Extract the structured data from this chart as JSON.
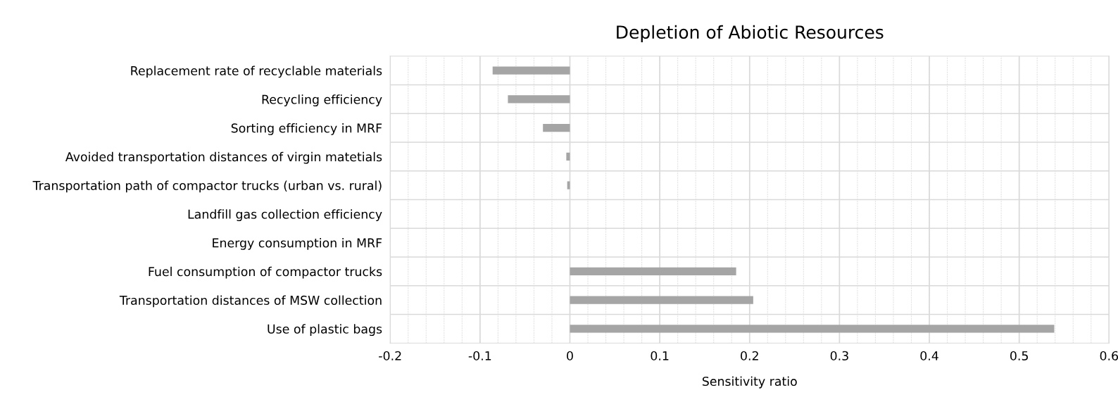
{
  "chart_data": {
    "type": "bar",
    "orientation": "horizontal",
    "title": "Depletion of Abiotic Resources",
    "xlabel": "Sensitivity ratio",
    "categories": [
      "Replacement rate of recyclable materials",
      "Recycling efficiency",
      "Sorting efficiency in MRF",
      "Avoided transportation distances of virgin matetials",
      "Transportation path of compactor trucks (urban vs. rural)",
      "Landfill gas collection efficiency",
      "Energy consumption in MRF",
      "Fuel consumption of compactor trucks",
      "Transportation distances of MSW collection",
      "Use of plastic bags"
    ],
    "values": [
      -0.086,
      -0.069,
      -0.03,
      -0.004,
      -0.003,
      0,
      0,
      0.185,
      0.204,
      0.539
    ],
    "color": "#a5a5a5",
    "xlim": [
      -0.2,
      0.6
    ],
    "xticks": [
      -0.2,
      -0.1,
      0,
      0.1,
      0.2,
      0.3,
      0.4,
      0.5,
      0.6
    ],
    "grid": true
  }
}
